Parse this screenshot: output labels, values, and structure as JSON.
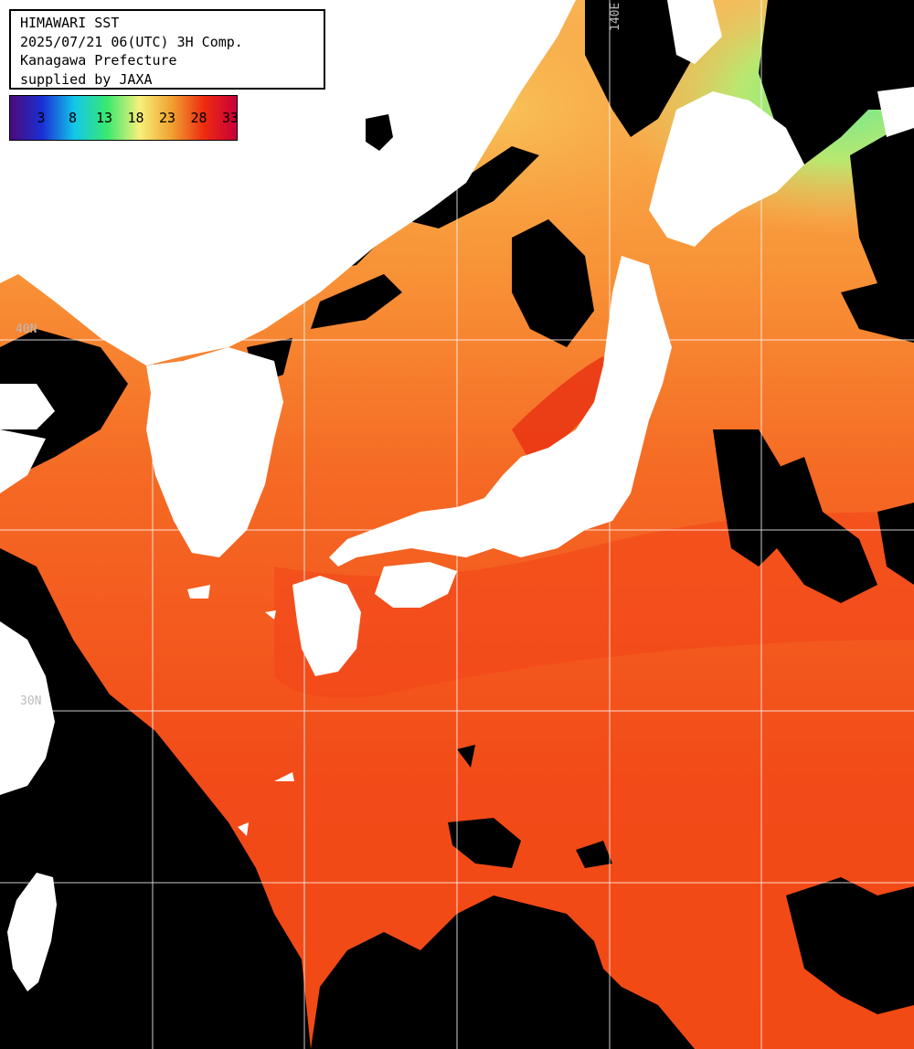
{
  "header": {
    "lines": [
      "HIMAWARI SST",
      "2025/07/21 06(UTC) 3H Comp.",
      "Kanagawa Prefecture",
      "supplied by JAXA"
    ]
  },
  "legend": {
    "ticks": [
      "3",
      "8",
      "13",
      "18",
      "23",
      "28",
      "33"
    ],
    "colors": [
      "#4b0a7a",
      "#1a2fd6",
      "#12c8e8",
      "#3ae870",
      "#f8f07a",
      "#f0a030",
      "#ee2a10",
      "#c8003a"
    ]
  },
  "grid": {
    "labels": {
      "lon_140": "140E",
      "lat_40": "40N",
      "lat_30": "30N"
    }
  },
  "colors": {
    "land": "#ffffff",
    "no_data": "#000000",
    "sea_warm": "#f4501a",
    "sea_mid": "#f89035",
    "sea_cool": "#f6cc6a",
    "sea_cold": "#98e878",
    "grid": "#ffffff"
  }
}
